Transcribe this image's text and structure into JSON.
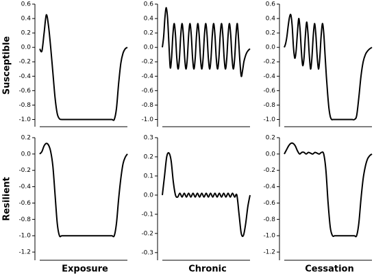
{
  "chart_data": [
    {
      "type": "line",
      "ylabel": "Susceptible",
      "x": [
        0,
        0.25,
        0.5,
        0.75,
        1,
        1.25,
        1.5,
        1.75,
        2,
        2.25,
        2.5,
        2.75,
        3,
        3.25,
        3.5,
        3.75,
        4,
        4.25,
        4.5,
        4.75,
        5,
        5.25,
        5.5,
        5.75,
        6,
        6.25,
        6.5,
        6.75,
        7,
        7.25,
        7.5,
        7.75,
        8,
        8.25,
        8.5,
        8.75,
        9,
        9.25,
        9.5,
        9.75,
        10
      ],
      "series": [
        {
          "color": "#000000",
          "values": [
            -0.02,
            -0.05,
            0.2,
            0.45,
            0.3,
            0,
            -0.35,
            -0.7,
            -0.92,
            -0.99,
            -1,
            -1,
            -1,
            -1,
            -1,
            -1,
            -1,
            -1,
            -1,
            -1,
            -1,
            -1,
            -1,
            -1,
            -1,
            -1,
            -1,
            -1,
            -1,
            -1,
            -1,
            -1,
            -1,
            -1,
            -1,
            -0.85,
            -0.5,
            -0.22,
            -0.08,
            -0.02,
            0
          ]
        }
      ],
      "xlim": [
        0,
        10
      ],
      "ylim": [
        -1.1,
        0.6
      ],
      "yticks": [
        {
          "value": -1.0,
          "label": "-1.0"
        },
        -0.8,
        -0.6,
        -0.4,
        -0.2,
        {
          "value": 0,
          "label": "0.0"
        },
        0.2,
        0.4,
        0.6
      ]
    },
    {
      "type": "line",
      "x": [
        0,
        0.15,
        0.3,
        0.45,
        0.6,
        0.75,
        0.9,
        1.05,
        1.2,
        1.35,
        1.5,
        1.65,
        1.8,
        1.95,
        2.1,
        2.25,
        2.4,
        2.55,
        2.7,
        2.85,
        3,
        3.15,
        3.3,
        3.45,
        3.6,
        3.75,
        3.9,
        4.05,
        4.2,
        4.35,
        4.5,
        4.65,
        4.8,
        4.95,
        5.1,
        5.25,
        5.4,
        5.55,
        5.7,
        5.85,
        6,
        6.15,
        6.3,
        6.45,
        6.6,
        6.75,
        6.9,
        7.05,
        7.2,
        7.35,
        7.5,
        7.65,
        7.8,
        7.95,
        8.1,
        8.25,
        8.4,
        8.55,
        8.7,
        8.85,
        9,
        9.15,
        9.3,
        9.45,
        9.6,
        9.75,
        9.9,
        10
      ],
      "series": [
        {
          "color": "#000000",
          "values": [
            0,
            0.15,
            0.42,
            0.55,
            0.4,
            0.05,
            -0.28,
            -0.15,
            0.17,
            0.33,
            0.17,
            -0.15,
            -0.3,
            -0.15,
            0.17,
            0.33,
            0.17,
            -0.15,
            -0.3,
            -0.15,
            0.17,
            0.33,
            0.17,
            -0.15,
            -0.3,
            -0.15,
            0.17,
            0.33,
            0.17,
            -0.15,
            -0.3,
            -0.15,
            0.17,
            0.33,
            0.17,
            -0.15,
            -0.3,
            -0.15,
            0.17,
            0.33,
            0.17,
            -0.15,
            -0.3,
            -0.15,
            0.17,
            0.33,
            0.17,
            -0.15,
            -0.3,
            -0.15,
            0.17,
            0.33,
            0.17,
            -0.15,
            -0.3,
            -0.15,
            0.17,
            0.33,
            0.1,
            -0.2,
            -0.4,
            -0.32,
            -0.2,
            -0.13,
            -0.08,
            -0.05,
            -0.03,
            -0.02
          ]
        }
      ],
      "xlim": [
        0,
        10
      ],
      "ylim": [
        -1.1,
        0.6
      ],
      "yticks": [
        {
          "value": -1.0,
          "label": "-1.0"
        },
        -0.8,
        -0.6,
        -0.4,
        -0.2,
        {
          "value": 0,
          "label": "0.0"
        },
        0.2,
        0.4,
        0.6
      ]
    },
    {
      "type": "line",
      "x": [
        0,
        0.15,
        0.3,
        0.45,
        0.6,
        0.75,
        0.9,
        1.05,
        1.2,
        1.35,
        1.5,
        1.65,
        1.8,
        1.95,
        2.1,
        2.25,
        2.4,
        2.55,
        2.7,
        2.85,
        3,
        3.15,
        3.3,
        3.45,
        3.6,
        3.75,
        3.9,
        4.05,
        4.2,
        4.35,
        4.5,
        4.65,
        4.8,
        4.95,
        5.1,
        5.25,
        5.4,
        5.55,
        5.7,
        5.85,
        6,
        6.25,
        6.5,
        6.75,
        7,
        7.25,
        7.5,
        7.75,
        8,
        8.25,
        8.5,
        8.75,
        9,
        9.25,
        9.5,
        9.75,
        10
      ],
      "series": [
        {
          "color": "#000000",
          "values": [
            0,
            0.05,
            0.15,
            0.3,
            0.42,
            0.45,
            0.3,
            0,
            -0.15,
            -0.05,
            0.2,
            0.4,
            0.25,
            -0.05,
            -0.25,
            -0.15,
            0.15,
            0.35,
            0.2,
            -0.1,
            -0.3,
            -0.15,
            0.15,
            0.33,
            0.18,
            -0.12,
            -0.3,
            -0.15,
            0.15,
            0.33,
            0.2,
            -0.1,
            -0.4,
            -0.65,
            -0.85,
            -0.96,
            -1,
            -1,
            -1,
            -1,
            -1,
            -1,
            -1,
            -1,
            -1,
            -1,
            -1,
            -1,
            -1,
            -0.95,
            -0.7,
            -0.4,
            -0.2,
            -0.1,
            -0.05,
            -0.02,
            0
          ]
        }
      ],
      "xlim": [
        0,
        10
      ],
      "ylim": [
        -1.1,
        0.6
      ],
      "yticks": [
        {
          "value": -1.0,
          "label": "-1.0"
        },
        -0.8,
        -0.6,
        -0.4,
        -0.2,
        {
          "value": 0,
          "label": "0.0"
        },
        0.2,
        0.4,
        0.6
      ]
    },
    {
      "type": "line",
      "ylabel": "Resilient",
      "xlabel": "Exposure",
      "x": [
        0,
        0.25,
        0.5,
        0.75,
        1,
        1.25,
        1.5,
        1.75,
        2,
        2.25,
        2.5,
        2.75,
        3,
        3.25,
        3.5,
        3.75,
        4,
        4.25,
        4.5,
        4.75,
        5,
        5.25,
        5.5,
        5.75,
        6,
        6.25,
        6.5,
        6.75,
        7,
        7.25,
        7.5,
        7.75,
        8,
        8.25,
        8.5,
        8.75,
        9,
        9.25,
        9.5,
        9.75,
        10
      ],
      "series": [
        {
          "color": "#000000",
          "values": [
            0,
            0.03,
            0.1,
            0.13,
            0.11,
            0.03,
            -0.15,
            -0.5,
            -0.85,
            -1,
            -1,
            -1,
            -1,
            -1,
            -1,
            -1,
            -1,
            -1,
            -1,
            -1,
            -1,
            -1,
            -1,
            -1,
            -1,
            -1,
            -1,
            -1,
            -1,
            -1,
            -1,
            -1,
            -1,
            -1,
            -1,
            -0.85,
            -0.55,
            -0.3,
            -0.12,
            -0.04,
            0
          ]
        }
      ],
      "xlim": [
        0,
        10
      ],
      "ylim": [
        -1.3,
        0.2
      ],
      "yticks": [
        -1.2,
        {
          "value": -1.0,
          "label": "-1.0"
        },
        -0.8,
        -0.6,
        -0.4,
        -0.2,
        {
          "value": 0,
          "label": "0.0"
        },
        0.2
      ]
    },
    {
      "type": "line",
      "xlabel": "Chronic",
      "x": [
        0,
        0.25,
        0.5,
        0.75,
        1,
        1.25,
        1.5,
        1.75,
        2,
        2.25,
        2.5,
        2.75,
        3,
        3.25,
        3.5,
        3.75,
        4,
        4.25,
        4.5,
        4.75,
        5,
        5.25,
        5.5,
        5.75,
        6,
        6.25,
        6.5,
        6.75,
        7,
        7.25,
        7.5,
        7.75,
        8,
        8.25,
        8.5,
        8.75,
        9,
        9.25,
        9.5,
        9.75,
        10
      ],
      "series": [
        {
          "color": "#000000",
          "values": [
            0,
            0.1,
            0.2,
            0.22,
            0.18,
            0.07,
            0,
            -0.01,
            0.01,
            -0.01,
            0.01,
            -0.01,
            0.01,
            -0.01,
            0.01,
            -0.01,
            0.01,
            -0.01,
            0.01,
            -0.01,
            0.01,
            -0.01,
            0.01,
            -0.01,
            0.01,
            -0.01,
            0.01,
            -0.01,
            0.01,
            -0.01,
            0.01,
            -0.01,
            0.01,
            -0.01,
            0,
            -0.1,
            -0.2,
            -0.21,
            -0.15,
            -0.06,
            0
          ]
        }
      ],
      "xlim": [
        0,
        10
      ],
      "ylim": [
        -0.34,
        0.3
      ],
      "yticks": [
        -0.3,
        -0.2,
        -0.1,
        {
          "value": 0,
          "label": "0.0"
        },
        0.1,
        0.2,
        0.3
      ]
    },
    {
      "type": "line",
      "xlabel": "Cessation",
      "x": [
        0,
        0.25,
        0.5,
        0.75,
        1,
        1.25,
        1.5,
        1.75,
        2,
        2.25,
        2.5,
        2.75,
        3,
        3.25,
        3.5,
        3.75,
        4,
        4.25,
        4.5,
        4.75,
        5,
        5.25,
        5.5,
        5.75,
        6,
        6.25,
        6.5,
        6.75,
        7,
        7.25,
        7.5,
        7.75,
        8,
        8.25,
        8.5,
        8.75,
        9,
        9.25,
        9.5,
        9.75,
        10
      ],
      "series": [
        {
          "color": "#000000",
          "values": [
            0,
            0.05,
            0.1,
            0.13,
            0.13,
            0.1,
            0.04,
            0,
            0.02,
            0.02,
            0,
            0.02,
            0.01,
            0,
            0.02,
            0.01,
            0,
            0.02,
            0,
            -0.2,
            -0.6,
            -0.9,
            -1,
            -1,
            -1,
            -1,
            -1,
            -1,
            -1,
            -1,
            -1,
            -1,
            -1,
            -1,
            -0.85,
            -0.55,
            -0.3,
            -0.15,
            -0.06,
            -0.02,
            0
          ]
        }
      ],
      "xlim": [
        0,
        10
      ],
      "ylim": [
        -1.3,
        0.2
      ],
      "yticks": [
        -1.2,
        {
          "value": -1.0,
          "label": "-1.0"
        },
        -0.8,
        -0.6,
        -0.4,
        -0.2,
        {
          "value": 0,
          "label": "0.0"
        },
        0.2
      ]
    }
  ]
}
